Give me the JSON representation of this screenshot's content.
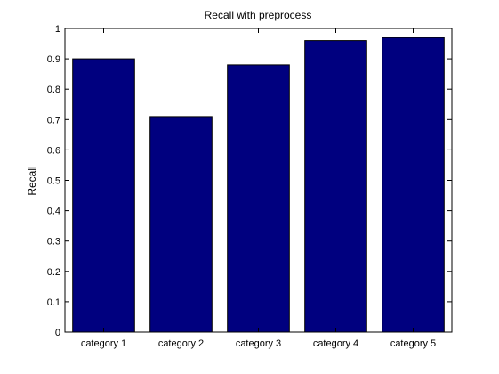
{
  "chart_data": {
    "type": "bar",
    "title": "Recall with preprocess",
    "xlabel": "",
    "ylabel": "Recall",
    "categories": [
      "category 1",
      "category 2",
      "category 3",
      "category 4",
      "category 5"
    ],
    "values": [
      0.9,
      0.71,
      0.88,
      0.96,
      0.97
    ],
    "ylim": [
      0,
      1
    ],
    "yticks": [
      0,
      0.1,
      0.2,
      0.3,
      0.4,
      0.5,
      0.6,
      0.7,
      0.8,
      0.9,
      1
    ],
    "ytick_labels": [
      "0",
      "0.1",
      "0.2",
      "0.3",
      "0.4",
      "0.5",
      "0.6",
      "0.7",
      "0.8",
      "0.9",
      "1"
    ],
    "grid": false,
    "bar_color": "#00007F",
    "legend": null
  }
}
